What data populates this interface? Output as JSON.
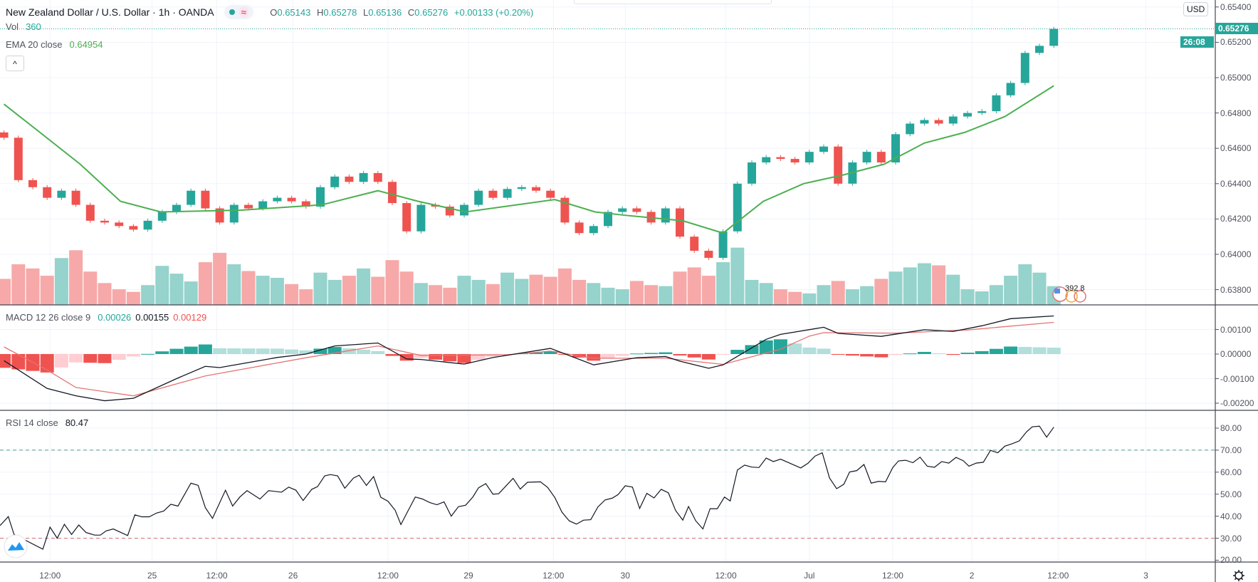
{
  "header": {
    "title": "New Zealand Dollar / U.S. Dollar · 1h · OANDA",
    "market_status_icon": "market-open-dot",
    "replay_icon": "approx-wave",
    "o_label": "O",
    "o": "0.65143",
    "h_label": "H",
    "h": "0.65278",
    "l_label": "L",
    "l": "0.65136",
    "c_label": "C",
    "c": "0.65276",
    "change": "+0.00133 (+0.20%)"
  },
  "legend": {
    "vol_label": "Vol",
    "vol_value": "360",
    "ema_label": "EMA 20 close",
    "ema_value": "0.64954",
    "collapse_icon": "chevron-up",
    "collapse_glyph": "^"
  },
  "macd_legend": {
    "label": "MACD 12 26 close 9",
    "hist": "0.00026",
    "macd": "0.00155",
    "signal": "0.00129"
  },
  "rsi_legend": {
    "label": "RSI 14 close",
    "value": "80.47"
  },
  "price_axis": {
    "currency": "USD",
    "labels": [
      "0.65400",
      "0.65200",
      "0.65000",
      "0.64800",
      "0.64600",
      "0.64400",
      "0.64200",
      "0.64000",
      "0.63800"
    ],
    "last_price": "0.65276",
    "countdown": "26:08"
  },
  "macd_axis": {
    "labels": [
      "0.00100",
      "0.00000",
      "-0.00100",
      "-0.00200"
    ]
  },
  "rsi_axis": {
    "labels": [
      "80.00",
      "70.00",
      "60.00",
      "50.00",
      "40.00",
      "30.00",
      "20.00"
    ],
    "overbought": 70,
    "oversold": 30
  },
  "time_axis": {
    "labels": [
      "12:00",
      "25",
      "12:00",
      "26",
      "12:00",
      "29",
      "12:00",
      "30",
      "12:00",
      "Jul",
      "12:00",
      "2",
      "12:00",
      "3"
    ],
    "bars": [
      3.2,
      10.3,
      14.8,
      20.1,
      26.7,
      32.3,
      38.2,
      43.2,
      50.2,
      56,
      61.8,
      67.3,
      73.3,
      79.4
    ]
  },
  "events": {
    "icon": "us-flag-events",
    "count_text": "392 8"
  },
  "logo": {
    "icon": "tradingview-logo"
  },
  "settings": {
    "icon": "gear-icon"
  },
  "colors": {
    "up": "#26a69a",
    "down": "#ef5350",
    "vol_up": "#95d3cc",
    "vol_down": "#f6a9a8",
    "ema": "#4caf50",
    "macd": "#131722",
    "signal": "#e57373",
    "hist_up_strong": "#26a69a",
    "hist_up_weak": "#b2dfdb",
    "hist_down_strong": "#ef5350",
    "hist_down_weak": "#ffcdd2",
    "rsi": "#131722",
    "band_high": "#4a9e8e",
    "band_low": "#d27070",
    "grid": "#f0f3fa",
    "separator": "#434651"
  },
  "chart_data": {
    "type": "candlestick",
    "title": "New Zealand Dollar / U.S. Dollar · 1h · OANDA",
    "price_range": [
      0.6371,
      0.6544
    ],
    "grid": true,
    "first_open": 0.6469,
    "close": [
      0.6466,
      0.6442,
      0.6438,
      0.6432,
      0.6436,
      0.6428,
      0.6419,
      0.6418,
      0.6416,
      0.6414,
      0.6419,
      0.6424,
      0.6428,
      0.6436,
      0.6426,
      0.6418,
      0.6428,
      0.6426,
      0.643,
      0.6432,
      0.643,
      0.6427,
      0.6438,
      0.6444,
      0.6441,
      0.6446,
      0.6441,
      0.6429,
      0.6413,
      0.6428,
      0.6427,
      0.6422,
      0.6428,
      0.6436,
      0.6432,
      0.6437,
      0.6438,
      0.6436,
      0.6432,
      0.6418,
      0.6412,
      0.6416,
      0.6424,
      0.6426,
      0.6424,
      0.6418,
      0.6426,
      0.641,
      0.6402,
      0.6398,
      0.6413,
      0.644,
      0.6452,
      0.6455,
      0.6454,
      0.6452,
      0.6458,
      0.6461,
      0.644,
      0.6452,
      0.6458,
      0.6452,
      0.6468,
      0.6474,
      0.6476,
      0.6474,
      0.6478,
      0.648,
      0.6481,
      0.649,
      0.6497,
      0.6514,
      0.6518,
      0.65276
    ],
    "volume": [
      500,
      780,
      700,
      560,
      900,
      1050,
      640,
      420,
      300,
      250,
      380,
      750,
      600,
      450,
      820,
      1000,
      780,
      650,
      560,
      520,
      400,
      300,
      620,
      480,
      560,
      700,
      540,
      860,
      640,
      420,
      380,
      330,
      560,
      480,
      400,
      620,
      500,
      580,
      540,
      700,
      480,
      420,
      330,
      300,
      460,
      380,
      360,
      640,
      720,
      560,
      820,
      1100,
      480,
      420,
      300,
      250,
      220,
      380,
      460,
      300,
      360,
      500,
      640,
      720,
      800,
      760,
      580,
      300,
      260,
      380,
      560,
      780,
      620,
      360
    ],
    "ema20": [
      [
        0,
        0.6485
      ],
      [
        2.5,
        0.6469
      ],
      [
        5.3,
        0.6451
      ],
      [
        8.1,
        0.643
      ],
      [
        10.9,
        0.6424
      ],
      [
        16.5,
        0.6425
      ],
      [
        22.1,
        0.6428
      ],
      [
        26,
        0.6436
      ],
      [
        28.8,
        0.643
      ],
      [
        32.1,
        0.6424
      ],
      [
        38.3,
        0.6431
      ],
      [
        41.1,
        0.6424
      ],
      [
        43.3,
        0.6422
      ],
      [
        47.2,
        0.6419
      ],
      [
        50,
        0.6412
      ],
      [
        52.8,
        0.643
      ],
      [
        55.6,
        0.644
      ],
      [
        58.4,
        0.6445
      ],
      [
        61.2,
        0.6451
      ],
      [
        64,
        0.6463
      ],
      [
        66.8,
        0.6469
      ],
      [
        69.6,
        0.6478
      ],
      [
        73,
        0.64954
      ]
    ],
    "macd": {
      "range": [
        -0.00229,
        0.002
      ],
      "macd_line": [
        [
          0,
          -0.00027
        ],
        [
          3,
          -0.0014
        ],
        [
          5,
          -0.0017
        ],
        [
          7,
          -0.0019
        ],
        [
          9,
          -0.0018
        ],
        [
          12,
          -0.001
        ],
        [
          14,
          -0.0005
        ],
        [
          15,
          -0.00055
        ],
        [
          19,
          -0.00014
        ],
        [
          21,
          0
        ],
        [
          23,
          0.00033
        ],
        [
          26,
          0.00045
        ],
        [
          28,
          -0.0002
        ],
        [
          29,
          -0.00022
        ],
        [
          32,
          -0.00041
        ],
        [
          34,
          -0.00014
        ],
        [
          38,
          0.00023
        ],
        [
          41,
          -0.00044
        ],
        [
          44,
          -0.00015
        ],
        [
          46,
          -0.0001
        ],
        [
          47,
          -0.00029
        ],
        [
          49,
          -0.00058
        ],
        [
          50,
          -0.00044
        ],
        [
          53,
          0.0006
        ],
        [
          54,
          0.0008
        ],
        [
          57,
          0.00109
        ],
        [
          58,
          0.00084
        ],
        [
          61,
          0.00072
        ],
        [
          64,
          0.00099
        ],
        [
          66,
          0.00092
        ],
        [
          68,
          0.00115
        ],
        [
          70,
          0.00144
        ],
        [
          73,
          0.00155
        ]
      ],
      "signal_line": [
        [
          0,
          0.00029
        ],
        [
          3,
          -0.00065
        ],
        [
          5,
          -0.00136
        ],
        [
          9,
          -0.0017
        ],
        [
          14,
          -0.00089
        ],
        [
          21,
          -0.00015
        ],
        [
          26,
          0.00033
        ],
        [
          29,
          -6e-05
        ],
        [
          35,
          -3e-05
        ],
        [
          38,
          0.00012
        ],
        [
          41,
          -0.00017
        ],
        [
          46,
          -0.00017
        ],
        [
          50,
          -0.00042
        ],
        [
          54,
          0.0002
        ],
        [
          56,
          0.00073
        ],
        [
          57,
          0.00087
        ],
        [
          62,
          0.00085
        ],
        [
          67,
          0.00098
        ],
        [
          73,
          0.00129
        ]
      ]
    },
    "rsi": {
      "range": [
        19,
        88
      ],
      "points": [
        [
          -0.3,
          35.7
        ],
        [
          0.3,
          39.8
        ],
        [
          0.7,
          31.7
        ],
        [
          1.6,
          28.7
        ],
        [
          2.7,
          25
        ],
        [
          3.2,
          35
        ],
        [
          3.7,
          30
        ],
        [
          4.2,
          36.3
        ],
        [
          4.7,
          31.7
        ],
        [
          5.2,
          36
        ],
        [
          5.7,
          32.6
        ],
        [
          6.3,
          31.4
        ],
        [
          6.7,
          31.4
        ],
        [
          7.1,
          33.3
        ],
        [
          7.6,
          34.2
        ],
        [
          8.6,
          31.2
        ],
        [
          9.1,
          40.6
        ],
        [
          9.6,
          39.7
        ],
        [
          10.1,
          39.7
        ],
        [
          10.6,
          41.4
        ],
        [
          11.1,
          42.3
        ],
        [
          11.6,
          45.4
        ],
        [
          12.1,
          44.6
        ],
        [
          13,
          55
        ],
        [
          13.5,
          54
        ],
        [
          14,
          43.9
        ],
        [
          14.5,
          39
        ],
        [
          15.4,
          51.8
        ],
        [
          15.9,
          44.6
        ],
        [
          16.4,
          48.7
        ],
        [
          16.9,
          51.6
        ],
        [
          17.8,
          47.8
        ],
        [
          18.4,
          51.6
        ],
        [
          19.3,
          50.9
        ],
        [
          19.8,
          53.2
        ],
        [
          20.3,
          51.8
        ],
        [
          20.8,
          47.1
        ],
        [
          21.4,
          52.2
        ],
        [
          21.8,
          53.4
        ],
        [
          22.3,
          58.3
        ],
        [
          22.7,
          58.9
        ],
        [
          23.2,
          58.3
        ],
        [
          23.7,
          52.7
        ],
        [
          24.3,
          57.3
        ],
        [
          24.7,
          58.6
        ],
        [
          25.2,
          54
        ],
        [
          25.7,
          58
        ],
        [
          26.2,
          48.6
        ],
        [
          26.7,
          46.8
        ],
        [
          27.2,
          42.7
        ],
        [
          27.6,
          36.2
        ],
        [
          28.1,
          42.5
        ],
        [
          28.6,
          48.7
        ],
        [
          29.1,
          47.8
        ],
        [
          29.6,
          46.2
        ],
        [
          30.1,
          45.2
        ],
        [
          30.6,
          46.5
        ],
        [
          31.1,
          40
        ],
        [
          31.6,
          44.3
        ],
        [
          32.1,
          45
        ],
        [
          32.6,
          48.7
        ],
        [
          33,
          52.9
        ],
        [
          33.5,
          54.8
        ],
        [
          34,
          50
        ],
        [
          34.4,
          50.2
        ],
        [
          35.4,
          57.2
        ],
        [
          35.9,
          52.3
        ],
        [
          36.4,
          55.4
        ],
        [
          37.3,
          55.6
        ],
        [
          37.8,
          53.1
        ],
        [
          38.3,
          48.5
        ],
        [
          38.8,
          41.8
        ],
        [
          39.3,
          37.9
        ],
        [
          39.8,
          36.4
        ],
        [
          40.3,
          38.2
        ],
        [
          40.8,
          38.4
        ],
        [
          41.3,
          44.2
        ],
        [
          41.8,
          47.4
        ],
        [
          42.3,
          48.2
        ],
        [
          42.7,
          49.8
        ],
        [
          43.2,
          53.8
        ],
        [
          43.7,
          53.2
        ],
        [
          44.2,
          43.5
        ],
        [
          44.7,
          50.4
        ],
        [
          45.2,
          48.3
        ],
        [
          45.7,
          52.2
        ],
        [
          46.2,
          50.6
        ],
        [
          46.7,
          42.6
        ],
        [
          47.2,
          38.2
        ],
        [
          47.6,
          44.4
        ],
        [
          48.1,
          37.9
        ],
        [
          48.6,
          34.2
        ],
        [
          49.1,
          43.4
        ],
        [
          49.6,
          43.4
        ],
        [
          50.1,
          48.7
        ],
        [
          50.5,
          46.9
        ],
        [
          51,
          61
        ],
        [
          51.5,
          63.2
        ],
        [
          52,
          62.3
        ],
        [
          52.5,
          62.1
        ],
        [
          53,
          66.4
        ],
        [
          53.5,
          64.8
        ],
        [
          54,
          65.9
        ],
        [
          54.5,
          64.5
        ],
        [
          55.4,
          61.9
        ],
        [
          55.9,
          64
        ],
        [
          56.4,
          67.3
        ],
        [
          56.9,
          68.8
        ],
        [
          57.4,
          57.4
        ],
        [
          57.9,
          52.5
        ],
        [
          58.4,
          54.5
        ],
        [
          58.8,
          60.1
        ],
        [
          59.3,
          60.7
        ],
        [
          59.8,
          63.5
        ],
        [
          60.3,
          55
        ],
        [
          60.8,
          55.8
        ],
        [
          61.3,
          55.6
        ],
        [
          61.8,
          62.1
        ],
        [
          62.2,
          65.1
        ],
        [
          62.7,
          65.4
        ],
        [
          63.2,
          64.3
        ],
        [
          63.7,
          66.8
        ],
        [
          64.2,
          62.7
        ],
        [
          64.7,
          62.2
        ],
        [
          65.2,
          64.8
        ],
        [
          65.7,
          64.1
        ],
        [
          66.2,
          66.7
        ],
        [
          66.7,
          65.2
        ],
        [
          67.1,
          62.7
        ],
        [
          67.6,
          64.1
        ],
        [
          68.1,
          64.5
        ],
        [
          68.6,
          69.9
        ],
        [
          69.1,
          68.8
        ],
        [
          69.6,
          71.8
        ],
        [
          70.1,
          72.9
        ],
        [
          70.6,
          74.2
        ],
        [
          71.1,
          78.3
        ],
        [
          71.5,
          80.6
        ],
        [
          72,
          80.9
        ],
        [
          72.5,
          75.9
        ],
        [
          73,
          80.47
        ]
      ]
    }
  }
}
